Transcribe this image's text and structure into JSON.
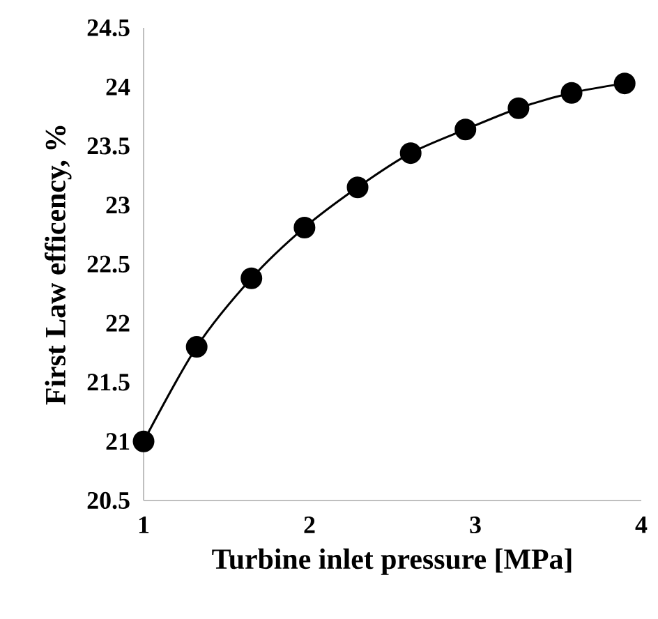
{
  "chart_data": {
    "type": "line",
    "xlabel": "Turbine inlet pressure [MPa]",
    "ylabel": "First Law efficency, %",
    "x": [
      1,
      1.32,
      1.65,
      1.97,
      2.29,
      2.61,
      2.94,
      3.26,
      3.58,
      3.9
    ],
    "series": [
      {
        "color": "#000000",
        "values": [
          21.0,
          21.8,
          22.38,
          22.81,
          23.15,
          23.44,
          23.64,
          23.82,
          23.95,
          24.03
        ]
      }
    ],
    "xlim": [
      1,
      4
    ],
    "xticks": [
      1,
      2,
      3,
      4
    ],
    "ylim": [
      20.5,
      24.5
    ],
    "yticks": [
      20.5,
      21,
      21.5,
      22,
      22.5,
      23,
      23.5,
      24,
      24.5
    ],
    "marker": "circle",
    "line_style": "solid"
  }
}
